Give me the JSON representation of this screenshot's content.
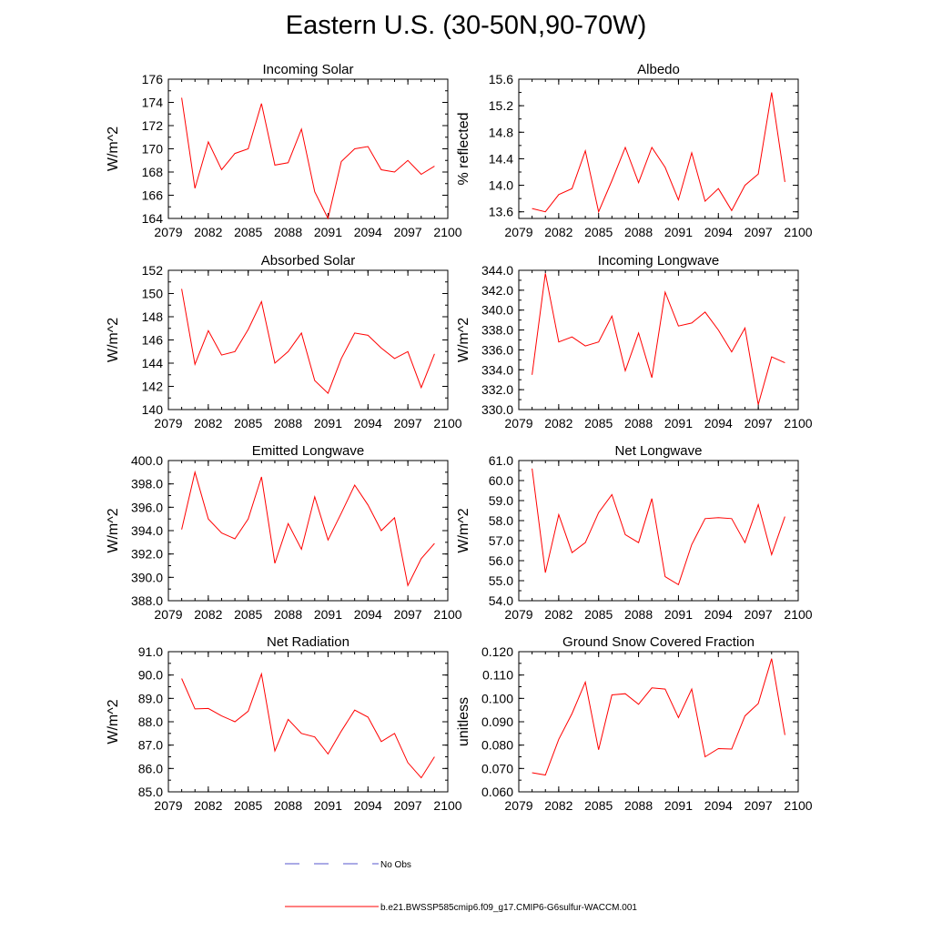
{
  "title": "Eastern U.S. (30-50N,90-70W)",
  "colors": {
    "series": "#ff0000",
    "obs": "#5555cc",
    "axis": "#000000"
  },
  "chart_data": [
    {
      "type": "line",
      "title": "Incoming Solar",
      "ylabel": "W/m^2",
      "xlim": [
        2079,
        2100
      ],
      "ylim": [
        164,
        176
      ],
      "xticks": [
        "2079",
        "2082",
        "2085",
        "2088",
        "2091",
        "2094",
        "2097",
        "2100"
      ],
      "yticks": [
        "164",
        "166",
        "168",
        "170",
        "172",
        "174",
        "176"
      ],
      "x": [
        2080,
        2081,
        2082,
        2083,
        2084,
        2085,
        2086,
        2087,
        2088,
        2089,
        2090,
        2091,
        2092,
        2093,
        2094,
        2095,
        2096,
        2097,
        2098,
        2099
      ],
      "series": [
        {
          "values": [
            174.4,
            166.6,
            170.6,
            168.2,
            169.6,
            170.0,
            173.9,
            168.6,
            168.8,
            171.7,
            166.3,
            164.0,
            168.9,
            170.0,
            170.2,
            168.2,
            168.0,
            169.0,
            167.8,
            168.5
          ]
        }
      ]
    },
    {
      "type": "line",
      "title": "Albedo",
      "ylabel": "% reflected",
      "xlim": [
        2079,
        2100
      ],
      "ylim": [
        13.5,
        15.6
      ],
      "xticks": [
        "2079",
        "2082",
        "2085",
        "2088",
        "2091",
        "2094",
        "2097",
        "2100"
      ],
      "yticks": [
        "13.6",
        "14.0",
        "14.4",
        "14.8",
        "15.2",
        "15.6"
      ],
      "x": [
        2080,
        2081,
        2082,
        2083,
        2084,
        2085,
        2086,
        2087,
        2088,
        2089,
        2090,
        2091,
        2092,
        2093,
        2094,
        2095,
        2096,
        2097,
        2098,
        2099
      ],
      "series": [
        {
          "values": [
            13.65,
            13.6,
            13.86,
            13.95,
            14.52,
            13.6,
            14.07,
            14.57,
            14.04,
            14.57,
            14.27,
            13.78,
            14.49,
            13.76,
            13.95,
            13.62,
            14.0,
            14.17,
            15.4,
            14.05
          ]
        }
      ]
    },
    {
      "type": "line",
      "title": "Absorbed Solar",
      "ylabel": "W/m^2",
      "xlim": [
        2079,
        2100
      ],
      "ylim": [
        140,
        152
      ],
      "xticks": [
        "2079",
        "2082",
        "2085",
        "2088",
        "2091",
        "2094",
        "2097",
        "2100"
      ],
      "yticks": [
        "140",
        "142",
        "144",
        "146",
        "148",
        "150",
        "152"
      ],
      "x": [
        2080,
        2081,
        2082,
        2083,
        2084,
        2085,
        2086,
        2087,
        2088,
        2089,
        2090,
        2091,
        2092,
        2093,
        2094,
        2095,
        2096,
        2097,
        2098,
        2099
      ],
      "series": [
        {
          "values": [
            150.4,
            143.9,
            146.8,
            144.7,
            145.0,
            146.9,
            149.3,
            144.0,
            145.0,
            146.6,
            142.5,
            141.4,
            144.4,
            146.6,
            146.4,
            145.3,
            144.4,
            145.0,
            141.9,
            144.8
          ]
        }
      ]
    },
    {
      "type": "line",
      "title": "Incoming Longwave",
      "ylabel": "W/m^2",
      "xlim": [
        2079,
        2100
      ],
      "ylim": [
        330,
        344
      ],
      "xticks": [
        "2079",
        "2082",
        "2085",
        "2088",
        "2091",
        "2094",
        "2097",
        "2100"
      ],
      "yticks": [
        "330.0",
        "332.0",
        "334.0",
        "336.0",
        "338.0",
        "340.0",
        "342.0",
        "344.0"
      ],
      "x": [
        2080,
        2081,
        2082,
        2083,
        2084,
        2085,
        2086,
        2087,
        2088,
        2089,
        2090,
        2091,
        2092,
        2093,
        2094,
        2095,
        2096,
        2097,
        2098,
        2099
      ],
      "series": [
        {
          "values": [
            333.5,
            343.7,
            336.8,
            337.3,
            336.4,
            336.8,
            339.4,
            333.9,
            337.7,
            333.2,
            341.8,
            338.4,
            338.7,
            339.8,
            338.0,
            335.8,
            338.2,
            330.5,
            335.3,
            334.7
          ]
        }
      ]
    },
    {
      "type": "line",
      "title": "Emitted Longwave",
      "ylabel": "W/m^2",
      "xlim": [
        2079,
        2100
      ],
      "ylim": [
        388,
        400
      ],
      "xticks": [
        "2079",
        "2082",
        "2085",
        "2088",
        "2091",
        "2094",
        "2097",
        "2100"
      ],
      "yticks": [
        "388.0",
        "390.0",
        "392.0",
        "394.0",
        "396.0",
        "398.0",
        "400.0"
      ],
      "x": [
        2080,
        2081,
        2082,
        2083,
        2084,
        2085,
        2086,
        2087,
        2088,
        2089,
        2090,
        2091,
        2092,
        2093,
        2094,
        2095,
        2096,
        2097,
        2098,
        2099
      ],
      "series": [
        {
          "values": [
            394.1,
            399.0,
            395.0,
            393.8,
            393.3,
            395.0,
            398.6,
            391.2,
            394.6,
            392.4,
            396.9,
            393.2,
            395.5,
            397.9,
            396.2,
            394.0,
            395.1,
            389.3,
            391.6,
            392.9
          ]
        }
      ]
    },
    {
      "type": "line",
      "title": "Net Longwave",
      "ylabel": "W/m^2",
      "xlim": [
        2079,
        2100
      ],
      "ylim": [
        54,
        61
      ],
      "xticks": [
        "2079",
        "2082",
        "2085",
        "2088",
        "2091",
        "2094",
        "2097",
        "2100"
      ],
      "yticks": [
        "54.0",
        "55.0",
        "56.0",
        "57.0",
        "58.0",
        "59.0",
        "60.0",
        "61.0"
      ],
      "x": [
        2080,
        2081,
        2082,
        2083,
        2084,
        2085,
        2086,
        2087,
        2088,
        2089,
        2090,
        2091,
        2092,
        2093,
        2094,
        2095,
        2096,
        2097,
        2098,
        2099
      ],
      "series": [
        {
          "values": [
            60.6,
            55.4,
            58.3,
            56.4,
            56.9,
            58.4,
            59.3,
            57.3,
            56.9,
            59.1,
            55.2,
            54.8,
            56.8,
            58.1,
            58.15,
            58.1,
            56.9,
            58.8,
            56.3,
            58.2
          ]
        }
      ]
    },
    {
      "type": "line",
      "title": "Net Radiation",
      "ylabel": "W/m^2",
      "xlim": [
        2079,
        2100
      ],
      "ylim": [
        85,
        91
      ],
      "xticks": [
        "2079",
        "2082",
        "2085",
        "2088",
        "2091",
        "2094",
        "2097",
        "2100"
      ],
      "yticks": [
        "85.0",
        "86.0",
        "87.0",
        "88.0",
        "89.0",
        "90.0",
        "91.0"
      ],
      "x": [
        2080,
        2081,
        2082,
        2083,
        2084,
        2085,
        2086,
        2087,
        2088,
        2089,
        2090,
        2091,
        2092,
        2093,
        2094,
        2095,
        2096,
        2097,
        2098,
        2099
      ],
      "series": [
        {
          "values": [
            89.85,
            88.55,
            88.57,
            88.25,
            88.0,
            88.45,
            90.05,
            86.75,
            88.1,
            87.5,
            87.35,
            86.62,
            87.6,
            88.5,
            88.2,
            87.15,
            87.5,
            86.25,
            85.6,
            86.5
          ]
        }
      ]
    },
    {
      "type": "line",
      "title": "Ground Snow Covered Fraction",
      "ylabel": "unitless",
      "xlim": [
        2079,
        2100
      ],
      "ylim": [
        0.06,
        0.12
      ],
      "xticks": [
        "2079",
        "2082",
        "2085",
        "2088",
        "2091",
        "2094",
        "2097",
        "2100"
      ],
      "yticks": [
        "0.060",
        "0.070",
        "0.080",
        "0.090",
        "0.100",
        "0.110",
        "0.120"
      ],
      "x": [
        2080,
        2081,
        2082,
        2083,
        2084,
        2085,
        2086,
        2087,
        2088,
        2089,
        2090,
        2091,
        2092,
        2093,
        2094,
        2095,
        2096,
        2097,
        2098,
        2099
      ],
      "series": [
        {
          "values": [
            0.0682,
            0.0672,
            0.0825,
            0.0935,
            0.107,
            0.078,
            0.1015,
            0.102,
            0.0975,
            0.1045,
            0.104,
            0.0918,
            0.104,
            0.075,
            0.0785,
            0.0783,
            0.0925,
            0.0978,
            0.117,
            0.0843
          ]
        }
      ]
    }
  ],
  "legend": {
    "obs_label": "No Obs",
    "model_label": "b.e21.BWSSP585cmip6.f09_g17.CMIP6-G6sulfur-WACCM.001"
  }
}
